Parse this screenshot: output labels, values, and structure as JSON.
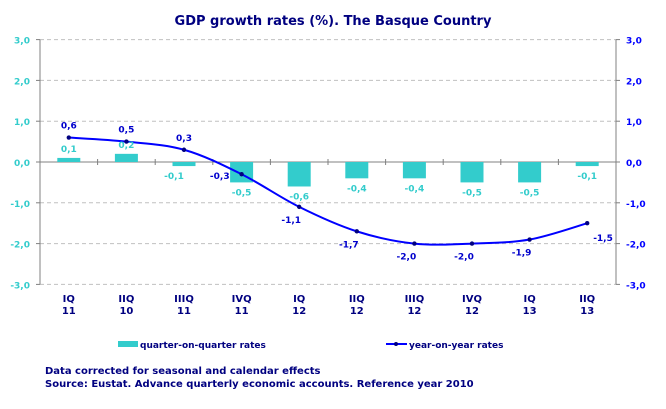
{
  "chart_data": {
    "type": "bar+line",
    "title": "GDP growth rates (%). The Basque Country",
    "categories": [
      [
        "IQ",
        "11"
      ],
      [
        "IIQ",
        "10"
      ],
      [
        "IIIQ",
        "11"
      ],
      [
        "IVQ",
        "11"
      ],
      [
        "IQ",
        "12"
      ],
      [
        "IIQ",
        "12"
      ],
      [
        "IIIQ",
        "12"
      ],
      [
        "IVQ",
        "12"
      ],
      [
        "IQ",
        "13"
      ],
      [
        "IIQ",
        "13"
      ]
    ],
    "series": [
      {
        "name": "quarter-on-quarter rates",
        "type": "bar",
        "axis": "left",
        "color": "#33cccc",
        "values": [
          0.1,
          0.2,
          -0.1,
          -0.5,
          -0.6,
          -0.4,
          -0.4,
          -0.5,
          -0.5,
          -0.1
        ],
        "labels": [
          "0,1",
          "0,2",
          "-0,1",
          "-0,5",
          "-0,6",
          "-0,4",
          "-0,4",
          "-0,5",
          "-0,5",
          "-0,1"
        ]
      },
      {
        "name": "year-on-year rates",
        "type": "line",
        "axis": "right",
        "color": "#0000ff",
        "values": [
          0.6,
          0.5,
          0.3,
          -0.3,
          -1.1,
          -1.7,
          -2.0,
          -2.0,
          -1.9,
          -1.5
        ],
        "labels": [
          "0,6",
          "0,5",
          "0,3",
          "-0,3",
          "-1,1",
          "-1,7",
          "-2,0",
          "-2,0",
          "-1,9",
          "-1,5"
        ]
      }
    ],
    "ylim": [
      -3,
      3
    ],
    "yticks": [
      "3,0",
      "2,0",
      "1,0",
      "0,0",
      "-1,0",
      "-2,0",
      "-3,0"
    ],
    "ytick_values": [
      3,
      2,
      1,
      0,
      -1,
      -2,
      -3
    ],
    "grid": true,
    "legend_position": "bottom",
    "colors": {
      "left_axis": "#33cccc",
      "right_axis": "#0000ff",
      "category": "#000080",
      "title": "#000080"
    }
  },
  "footer": {
    "note": "Data corrected for seasonal and calendar effects",
    "source": "Source: Eustat. Advance quarterly economic accounts. Reference year 2010"
  }
}
